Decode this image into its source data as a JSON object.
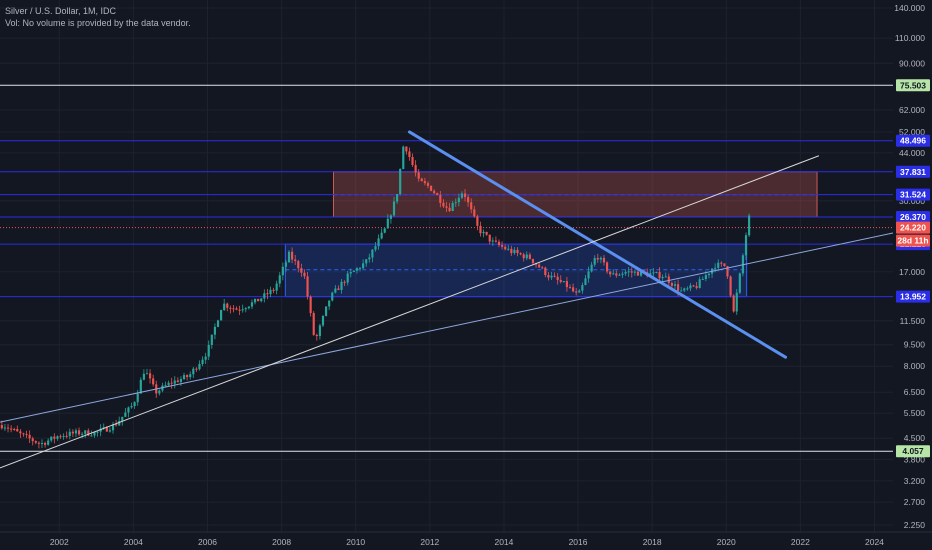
{
  "header": {
    "title": "Silver / U.S. Dollar, 1M, IDC",
    "volume_note": "Vol: No volume is provided by the data vendor."
  },
  "colors": {
    "background": "#131722",
    "grid": "#1e222d",
    "up": "#26a69a",
    "down": "#ef5350",
    "level_line": "#2a2ee6",
    "range_box": "#2962ff",
    "resistance_box": "#d05a54",
    "trend_thick": "#5b8ff0",
    "trend_thin": "#8fa7e0",
    "trend_white": "#d8d8d8",
    "green_tag": "#b7e4a7"
  },
  "chart_data": {
    "type": "candlestick",
    "title": "Silver / U.S. Dollar, 1M, IDC",
    "xlabel": "",
    "ylabel": "",
    "log_scale": true,
    "grid": true,
    "xlim": [
      2000.4,
      2024.5
    ],
    "ylim": [
      2.25,
      140.0
    ],
    "x_ticks": [
      "2002",
      "2004",
      "2006",
      "2008",
      "2010",
      "2012",
      "2014",
      "2016",
      "2018",
      "2020",
      "2022",
      "2024"
    ],
    "y_ticks": [
      "140.000",
      "110.000",
      "90.000",
      "62.000",
      "52.000",
      "44.000",
      "30.000",
      "17.000",
      "11.500",
      "9.500",
      "8.000",
      "6.500",
      "5.500",
      "4.500",
      "3.800",
      "3.200",
      "2.700",
      "2.250"
    ],
    "series": [
      {
        "x": [
          2000.5,
          2001.0,
          2001.5,
          2002.0,
          2002.5,
          2003.0,
          2003.5,
          2004.0,
          2004.3,
          2004.6,
          2005.0,
          2005.5,
          2006.0,
          2006.4,
          2006.8,
          2007.3,
          2007.8,
          2008.2,
          2008.6,
          2008.9,
          2009.3,
          2009.8,
          2010.3,
          2010.8,
          2011.1,
          2011.3,
          2011.7,
          2012.0,
          2012.5,
          2012.9,
          2013.3,
          2013.7,
          2014.2,
          2014.7,
          2015.2,
          2015.7,
          2016.0,
          2016.5,
          2016.9,
          2017.3,
          2017.8,
          2018.3,
          2018.8,
          2019.2,
          2019.7,
          2020.0,
          2020.2,
          2020.4,
          2020.6
        ],
        "close": [
          5.0,
          4.6,
          4.3,
          4.6,
          4.7,
          4.7,
          5.0,
          5.9,
          7.8,
          6.5,
          7.0,
          7.4,
          9.0,
          13.2,
          12.6,
          13.4,
          14.8,
          19.5,
          16.8,
          9.7,
          13.8,
          16.5,
          18.5,
          24.0,
          31.0,
          48.0,
          35.0,
          33.5,
          28.0,
          32.5,
          24.0,
          21.5,
          20.0,
          19.0,
          16.5,
          15.2,
          14.0,
          19.5,
          16.5,
          17.0,
          16.8,
          16.5,
          14.5,
          15.2,
          18.0,
          17.8,
          12.3,
          17.5,
          26.2
        ]
      }
    ],
    "levels": [
      "75.503",
      "48.496",
      "37.831",
      "31.524",
      "26.370",
      "21.220",
      "13.952",
      "4.057"
    ],
    "current_price": "24.220",
    "countdown": "28d 11h"
  }
}
